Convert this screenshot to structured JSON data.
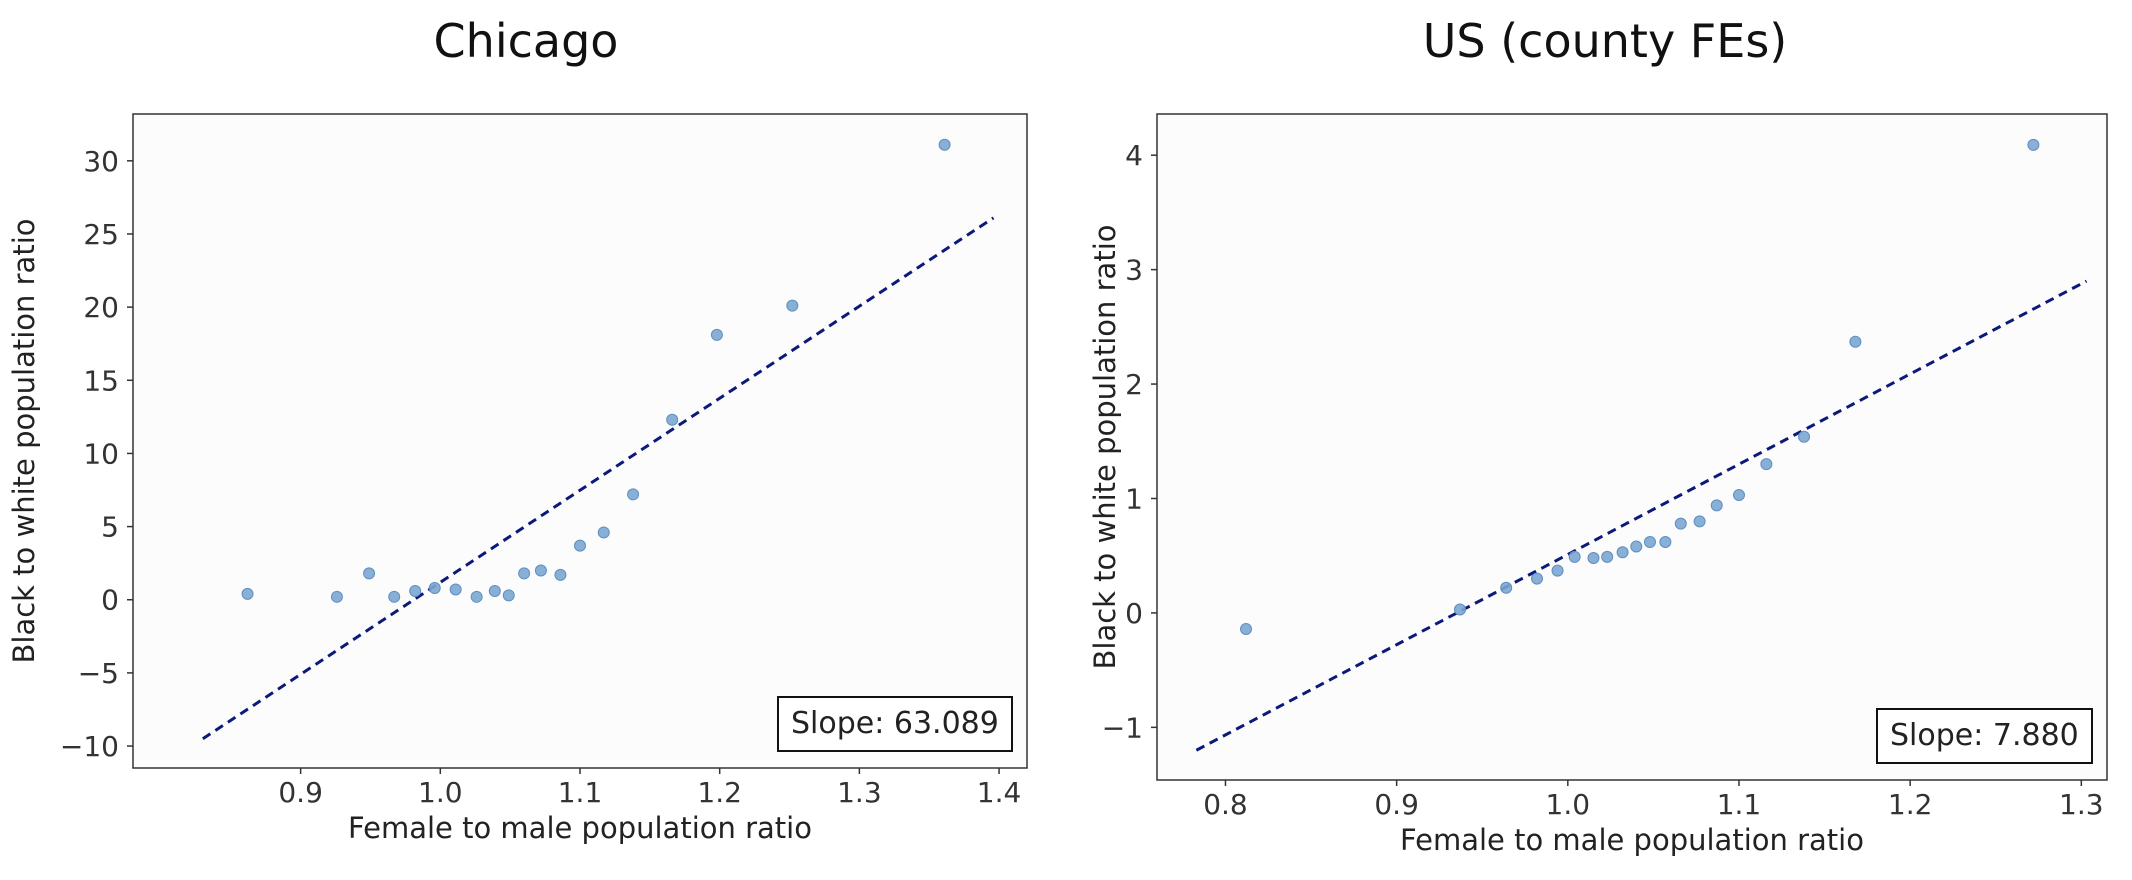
{
  "colors": {
    "points": "#7ba6d0",
    "point_edge": "#5f8fbf",
    "fit_line": "#0b1a7a",
    "frame": "#333333",
    "background": "#fcfcfc"
  },
  "chart_data": [
    {
      "type": "scatter",
      "title": "Chicago",
      "xlabel": "Female to male population ratio",
      "ylabel": "Black to white population ratio",
      "xlim": [
        0.78,
        1.42
      ],
      "ylim": [
        -11.5,
        33.2
      ],
      "xticks": [
        0.9,
        1.0,
        1.1,
        1.2,
        1.3,
        1.4
      ],
      "xtick_labels": [
        "0.9",
        "1.0",
        "1.1",
        "1.2",
        "1.3",
        "1.4"
      ],
      "yticks": [
        -10,
        -5,
        0,
        5,
        10,
        15,
        20,
        25,
        30
      ],
      "ytick_labels": [
        "−10",
        "−5",
        "0",
        "5",
        "10",
        "15",
        "20",
        "25",
        "30"
      ],
      "grid": false,
      "points": [
        {
          "x": 0.862,
          "y": 0.4
        },
        {
          "x": 0.926,
          "y": 0.2
        },
        {
          "x": 0.949,
          "y": 1.8
        },
        {
          "x": 0.967,
          "y": 0.2
        },
        {
          "x": 0.982,
          "y": 0.6
        },
        {
          "x": 0.996,
          "y": 0.8
        },
        {
          "x": 1.011,
          "y": 0.7
        },
        {
          "x": 1.026,
          "y": 0.2
        },
        {
          "x": 1.039,
          "y": 0.6
        },
        {
          "x": 1.049,
          "y": 0.3
        },
        {
          "x": 1.06,
          "y": 1.8
        },
        {
          "x": 1.072,
          "y": 2.0
        },
        {
          "x": 1.086,
          "y": 1.7
        },
        {
          "x": 1.1,
          "y": 3.7
        },
        {
          "x": 1.117,
          "y": 4.6
        },
        {
          "x": 1.138,
          "y": 7.2
        },
        {
          "x": 1.166,
          "y": 12.3
        },
        {
          "x": 1.198,
          "y": 18.1
        },
        {
          "x": 1.252,
          "y": 20.1
        },
        {
          "x": 1.361,
          "y": 31.1
        }
      ],
      "fit_line": {
        "x0": 0.83,
        "y0": -9.5,
        "x1": 1.396,
        "y1": 26.1
      },
      "annotation": "Slope: 63.089"
    },
    {
      "type": "scatter",
      "title": "US (county FEs)",
      "xlabel": "Female to male population ratio",
      "ylabel": "Black to white population ratio",
      "xlim": [
        0.76,
        1.315
      ],
      "ylim": [
        -1.46,
        4.36
      ],
      "xticks": [
        0.8,
        0.9,
        1.0,
        1.1,
        1.2,
        1.3
      ],
      "xtick_labels": [
        "0.8",
        "0.9",
        "1.0",
        "1.1",
        "1.2",
        "1.3"
      ],
      "yticks": [
        -1,
        0,
        1,
        2,
        3,
        4
      ],
      "ytick_labels": [
        "−1",
        "0",
        "1",
        "2",
        "3",
        "4"
      ],
      "grid": false,
      "points": [
        {
          "x": 0.812,
          "y": -0.14
        },
        {
          "x": 0.937,
          "y": 0.03
        },
        {
          "x": 0.964,
          "y": 0.22
        },
        {
          "x": 0.982,
          "y": 0.3
        },
        {
          "x": 0.994,
          "y": 0.37
        },
        {
          "x": 1.004,
          "y": 0.49
        },
        {
          "x": 1.015,
          "y": 0.48
        },
        {
          "x": 1.023,
          "y": 0.49
        },
        {
          "x": 1.032,
          "y": 0.53
        },
        {
          "x": 1.04,
          "y": 0.58
        },
        {
          "x": 1.048,
          "y": 0.62
        },
        {
          "x": 1.057,
          "y": 0.62
        },
        {
          "x": 1.066,
          "y": 0.78
        },
        {
          "x": 1.077,
          "y": 0.8
        },
        {
          "x": 1.087,
          "y": 0.94
        },
        {
          "x": 1.1,
          "y": 1.03
        },
        {
          "x": 1.116,
          "y": 1.3
        },
        {
          "x": 1.138,
          "y": 1.54
        },
        {
          "x": 1.168,
          "y": 2.37
        },
        {
          "x": 1.272,
          "y": 4.09
        }
      ],
      "fit_line": {
        "x0": 0.783,
        "y0": -1.2,
        "x1": 1.303,
        "y1": 2.9
      },
      "annotation": "Slope: 7.880"
    }
  ]
}
